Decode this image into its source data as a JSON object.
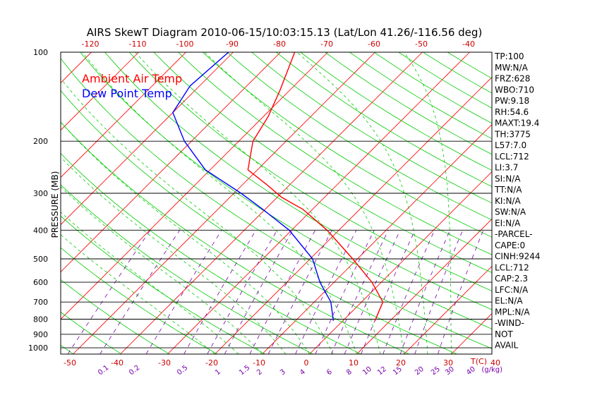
{
  "title": "AIRS SkewT Diagram 2010-06-15/10:03:15.13 (Lat/Lon 41.26/-116.56 deg)",
  "legend": [
    {
      "label": "Ambient Air Temp",
      "color": "#ff0000"
    },
    {
      "label": "Dew Point Temp",
      "color": "#0000ff"
    }
  ],
  "colors": {
    "isotherm": "#ff0000",
    "dry_adiabat": "#00cc00",
    "moist_adiabat": "#00cc00",
    "mixing_ratio": "#7700aa",
    "isobar": "#000000",
    "temp_profile": "#ff0000",
    "dew_profile": "#0000ff",
    "frame": "#000000",
    "bottom_ticks": "#cc0000",
    "top_ticks": "#cc0000",
    "pressure_labels": "#000000",
    "mixing_labels": "#7700aa"
  },
  "ylabel": "PRESSURE (MB)",
  "bottom_unit": "T(C)",
  "mixing_unit": "(g/kg)",
  "indices": [
    "TP:100",
    "MW:N/A",
    "FRZ:628",
    "WBO:710",
    "PW:9.18",
    "RH:54.6",
    "MAXT:19.4",
    "TH:3775",
    "L57:7.0",
    "LCL:712",
    "LI:3.7",
    "SI:N/A",
    "TT:N/A",
    "KI:N/A",
    "SW:N/A",
    "EI:N/A",
    "-PARCEL-",
    "CAPE:0",
    "CINH:9244",
    "LCL:712",
    "CAP:2.3",
    "LFC:N/A",
    "EL:N/A",
    "MPL:N/A",
    "-WIND-",
    "NOT",
    "AVAIL"
  ],
  "chart_data": {
    "type": "line",
    "title": "AIRS SkewT Diagram 2010-06-15/10:03:15.13 (Lat/Lon 41.26/-116.56 deg)",
    "ylabel": "PRESSURE (MB)",
    "xlabel": "T(C)",
    "y_scale": "log",
    "ylim": [
      1050,
      100
    ],
    "pressure_ticks": [
      100,
      200,
      300,
      400,
      500,
      600,
      700,
      800,
      900,
      1000
    ],
    "bottom_temp_ticks": [
      -50,
      -40,
      -30,
      -20,
      -10,
      0,
      10,
      20,
      30,
      40
    ],
    "top_temp_ticks": [
      -120,
      -110,
      -100,
      -90,
      -80,
      -70,
      -60,
      -50,
      -40
    ],
    "mixing_ratio_ticks": [
      "0.1",
      "0.2",
      "0.5",
      "1",
      "1.5",
      "2",
      "3",
      "4",
      "6",
      "8",
      "10",
      "12",
      "15",
      "20",
      "25",
      "30",
      "40"
    ],
    "series": [
      {
        "name": "Ambient Air Temp",
        "pressure": [
          810,
          700,
          600,
          500,
          400,
          340,
          310,
          280,
          250,
          200,
          165,
          135,
          100
        ],
        "temperature": [
          16.8,
          14.5,
          8.0,
          -1.0,
          -12.5,
          -22.0,
          -29.0,
          -35.0,
          -42.0,
          -47.0,
          -49.0,
          -52.0,
          -57.0
        ]
      },
      {
        "name": "Dew Point Temp",
        "pressure": [
          810,
          700,
          600,
          500,
          400,
          340,
          300,
          250,
          200,
          160,
          130,
          100
        ],
        "temperature": [
          8.0,
          3.5,
          -3.0,
          -9.5,
          -20.5,
          -30.5,
          -38.5,
          -51.0,
          -61.5,
          -70.0,
          -72.0,
          -71.0
        ]
      }
    ],
    "grid": true
  }
}
